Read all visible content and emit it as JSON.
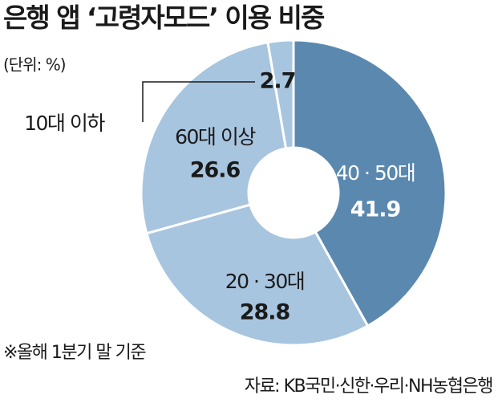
{
  "chart_data": {
    "type": "donut",
    "title": "은행 앱 ‘고령자모드’ 이용 비중",
    "subtitle": "(단위: %)",
    "categories": [
      "40 · 50대",
      "20 · 30대",
      "60대 이상",
      "10대 이하"
    ],
    "values": [
      41.9,
      28.8,
      26.6,
      2.7
    ],
    "colors": [
      "#5b88ae",
      "#a8c5df",
      "#a8c5df",
      "#a8c5df"
    ],
    "notes": [
      "※올해 1분기 말 기준",
      "자료: KB국민·신한·우리·NH농협은행"
    ]
  }
}
